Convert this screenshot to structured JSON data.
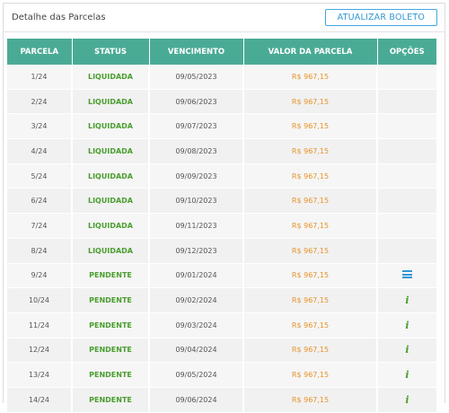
{
  "header": {
    "title": "Detalhe das Parcelas",
    "update_button": "ATUALIZAR BOLETO"
  },
  "table": {
    "columns": [
      "PARCELA",
      "STATUS",
      "VENCIMENTO",
      "VALOR DA PARCELA",
      "OPÇÕES"
    ],
    "rows": [
      {
        "parcela": "1/24",
        "status": "LIQUIDADA",
        "vencimento": "09/05/2023",
        "valor": "R$ 967,15",
        "opcao": ""
      },
      {
        "parcela": "2/24",
        "status": "LIQUIDADA",
        "vencimento": "09/06/2023",
        "valor": "R$ 967,15",
        "opcao": ""
      },
      {
        "parcela": "3/24",
        "status": "LIQUIDADA",
        "vencimento": "09/07/2023",
        "valor": "R$ 967,15",
        "opcao": ""
      },
      {
        "parcela": "4/24",
        "status": "LIQUIDADA",
        "vencimento": "09/08/2023",
        "valor": "R$ 967,15",
        "opcao": ""
      },
      {
        "parcela": "5/24",
        "status": "LIQUIDADA",
        "vencimento": "09/09/2023",
        "valor": "R$ 967,15",
        "opcao": ""
      },
      {
        "parcela": "6/24",
        "status": "LIQUIDADA",
        "vencimento": "09/10/2023",
        "valor": "R$ 967,15",
        "opcao": ""
      },
      {
        "parcela": "7/24",
        "status": "LIQUIDADA",
        "vencimento": "09/11/2023",
        "valor": "R$ 967,15",
        "opcao": ""
      },
      {
        "parcela": "8/24",
        "status": "LIQUIDADA",
        "vencimento": "09/12/2023",
        "valor": "R$ 967,15",
        "opcao": ""
      },
      {
        "parcela": "9/24",
        "status": "PENDENTE",
        "vencimento": "09/01/2024",
        "valor": "R$ 967,15",
        "opcao": "menu-icon"
      },
      {
        "parcela": "10/24",
        "status": "PENDENTE",
        "vencimento": "09/02/2024",
        "valor": "R$ 967,15",
        "opcao": "info-icon"
      },
      {
        "parcela": "11/24",
        "status": "PENDENTE",
        "vencimento": "09/03/2024",
        "valor": "R$ 967,15",
        "opcao": "info-icon"
      },
      {
        "parcela": "12/24",
        "status": "PENDENTE",
        "vencimento": "09/04/2024",
        "valor": "R$ 967,15",
        "opcao": "info-icon"
      },
      {
        "parcela": "13/24",
        "status": "PENDENTE",
        "vencimento": "09/05/2024",
        "valor": "R$ 967,15",
        "opcao": "info-icon"
      },
      {
        "parcela": "14/24",
        "status": "PENDENTE",
        "vencimento": "09/06/2024",
        "valor": "R$ 967,15",
        "opcao": "info-icon"
      }
    ]
  },
  "colors": {
    "header_bg": "#4aab95",
    "status_green": "#4a9e2e",
    "value_orange": "#e8922a",
    "accent_blue": "#2f97d6"
  }
}
